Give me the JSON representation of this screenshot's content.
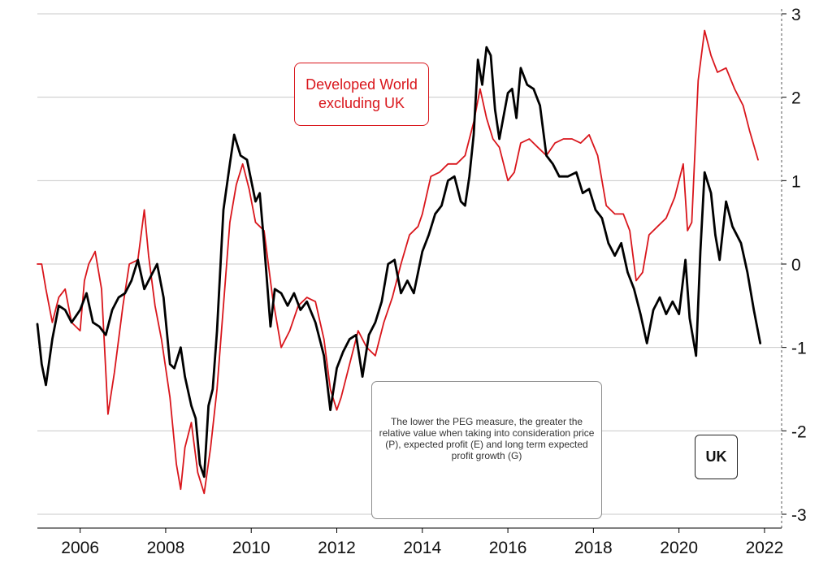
{
  "chart_data": {
    "type": "line",
    "title": "",
    "xlabel": "",
    "ylabel": "",
    "xlim": [
      2005.0,
      2022.4
    ],
    "ylim": [
      -3,
      3
    ],
    "y_axis_position": "right",
    "grid": "horizontal",
    "x_ticks": [
      "2006",
      "2008",
      "2010",
      "2012",
      "2014",
      "2016",
      "2018",
      "2020",
      "2022"
    ],
    "y_ticks": [
      "3",
      "2",
      "1",
      "0",
      "-1",
      "-2",
      "-3"
    ],
    "annotations": {
      "dev_world_line1": "Developed World",
      "dev_world_line2": "excluding UK",
      "uk": "UK",
      "note": "The lower the PEG measure, the greater the relative value when taking into consideration price (P), expected profit (E) and long term expected profit growth (G)"
    },
    "series": [
      {
        "name": "Developed World excluding UK",
        "color": "#d9161c",
        "x": [
          2005.0,
          2005.1,
          2005.2,
          2005.35,
          2005.5,
          2005.65,
          2005.8,
          2006.0,
          2006.1,
          2006.2,
          2006.35,
          2006.5,
          2006.65,
          2006.8,
          2007.0,
          2007.15,
          2007.35,
          2007.5,
          2007.6,
          2007.75,
          2007.9,
          2008.1,
          2008.25,
          2008.35,
          2008.45,
          2008.6,
          2008.75,
          2008.9,
          2009.05,
          2009.2,
          2009.35,
          2009.5,
          2009.65,
          2009.8,
          2009.95,
          2010.1,
          2010.3,
          2010.5,
          2010.7,
          2010.9,
          2011.1,
          2011.3,
          2011.5,
          2011.7,
          2011.85,
          2012.0,
          2012.1,
          2012.3,
          2012.5,
          2012.7,
          2012.9,
          2013.1,
          2013.3,
          2013.5,
          2013.7,
          2013.9,
          2014.0,
          2014.2,
          2014.4,
          2014.6,
          2014.8,
          2015.0,
          2015.2,
          2015.35,
          2015.5,
          2015.65,
          2015.8,
          2016.0,
          2016.15,
          2016.3,
          2016.5,
          2016.7,
          2016.9,
          2017.1,
          2017.3,
          2017.5,
          2017.7,
          2017.9,
          2018.1,
          2018.3,
          2018.5,
          2018.7,
          2018.85,
          2019.0,
          2019.15,
          2019.3,
          2019.5,
          2019.7,
          2019.9,
          2020.1,
          2020.2,
          2020.3,
          2020.45,
          2020.6,
          2020.75,
          2020.9,
          2021.1,
          2021.3,
          2021.5,
          2021.65,
          2021.85
        ],
        "values": [
          0.0,
          0.0,
          -0.3,
          -0.7,
          -0.4,
          -0.3,
          -0.7,
          -0.8,
          -0.2,
          0.0,
          0.15,
          -0.3,
          -1.8,
          -1.3,
          -0.5,
          0.0,
          0.05,
          0.65,
          0.1,
          -0.5,
          -0.9,
          -1.6,
          -2.4,
          -2.7,
          -2.2,
          -1.9,
          -2.5,
          -2.75,
          -2.2,
          -1.5,
          -0.5,
          0.5,
          0.95,
          1.2,
          0.9,
          0.5,
          0.4,
          -0.4,
          -1.0,
          -0.8,
          -0.5,
          -0.4,
          -0.45,
          -0.9,
          -1.5,
          -1.75,
          -1.6,
          -1.2,
          -0.8,
          -1.0,
          -1.1,
          -0.7,
          -0.4,
          0.0,
          0.35,
          0.45,
          0.6,
          1.05,
          1.1,
          1.2,
          1.2,
          1.3,
          1.7,
          2.1,
          1.75,
          1.5,
          1.4,
          1.0,
          1.1,
          1.45,
          1.5,
          1.4,
          1.3,
          1.45,
          1.5,
          1.5,
          1.45,
          1.55,
          1.3,
          0.7,
          0.6,
          0.6,
          0.4,
          -0.2,
          -0.1,
          0.35,
          0.45,
          0.55,
          0.8,
          1.2,
          0.4,
          0.5,
          2.2,
          2.8,
          2.5,
          2.3,
          2.35,
          2.1,
          1.9,
          1.6,
          1.25
        ]
      },
      {
        "name": "UK",
        "color": "#000000",
        "x": [
          2005.0,
          2005.1,
          2005.2,
          2005.35,
          2005.5,
          2005.65,
          2005.8,
          2006.0,
          2006.15,
          2006.3,
          2006.45,
          2006.6,
          2006.75,
          2006.9,
          2007.05,
          2007.2,
          2007.35,
          2007.5,
          2007.65,
          2007.8,
          2007.95,
          2008.1,
          2008.2,
          2008.35,
          2008.45,
          2008.6,
          2008.7,
          2008.8,
          2008.9,
          2009.0,
          2009.1,
          2009.2,
          2009.35,
          2009.5,
          2009.6,
          2009.75,
          2009.9,
          2010.0,
          2010.1,
          2010.2,
          2010.3,
          2010.45,
          2010.55,
          2010.7,
          2010.85,
          2011.0,
          2011.15,
          2011.3,
          2011.5,
          2011.7,
          2011.85,
          2012.0,
          2012.15,
          2012.3,
          2012.45,
          2012.6,
          2012.75,
          2012.9,
          2013.05,
          2013.2,
          2013.35,
          2013.5,
          2013.65,
          2013.8,
          2014.0,
          2014.15,
          2014.3,
          2014.45,
          2014.6,
          2014.75,
          2014.9,
          2015.0,
          2015.1,
          2015.2,
          2015.3,
          2015.4,
          2015.5,
          2015.6,
          2015.7,
          2015.8,
          2016.0,
          2016.1,
          2016.2,
          2016.3,
          2016.45,
          2016.6,
          2016.75,
          2016.9,
          2017.05,
          2017.2,
          2017.4,
          2017.6,
          2017.75,
          2017.9,
          2018.05,
          2018.2,
          2018.35,
          2018.5,
          2018.65,
          2018.8,
          2018.95,
          2019.1,
          2019.25,
          2019.4,
          2019.55,
          2019.7,
          2019.85,
          2020.0,
          2020.15,
          2020.25,
          2020.4,
          2020.5,
          2020.6,
          2020.75,
          2020.85,
          2020.95,
          2021.1,
          2021.25,
          2021.45,
          2021.6,
          2021.75,
          2021.9
        ],
        "values": [
          -0.72,
          -1.2,
          -1.45,
          -0.9,
          -0.5,
          -0.55,
          -0.7,
          -0.55,
          -0.35,
          -0.7,
          -0.75,
          -0.85,
          -0.55,
          -0.4,
          -0.35,
          -0.2,
          0.05,
          -0.3,
          -0.15,
          0.0,
          -0.4,
          -1.2,
          -1.25,
          -1.0,
          -1.35,
          -1.7,
          -1.85,
          -2.4,
          -2.55,
          -1.7,
          -1.5,
          -0.8,
          0.65,
          1.2,
          1.55,
          1.3,
          1.25,
          1.0,
          0.75,
          0.85,
          0.25,
          -0.75,
          -0.3,
          -0.35,
          -0.5,
          -0.35,
          -0.55,
          -0.45,
          -0.7,
          -1.1,
          -1.75,
          -1.25,
          -1.05,
          -0.9,
          -0.85,
          -1.35,
          -0.85,
          -0.7,
          -0.45,
          0.0,
          0.05,
          -0.35,
          -0.2,
          -0.35,
          0.15,
          0.35,
          0.6,
          0.7,
          1.0,
          1.05,
          0.75,
          0.7,
          1.05,
          1.55,
          2.45,
          2.15,
          2.6,
          2.5,
          1.85,
          1.5,
          2.05,
          2.1,
          1.75,
          2.35,
          2.15,
          2.1,
          1.9,
          1.3,
          1.2,
          1.05,
          1.05,
          1.1,
          0.85,
          0.9,
          0.65,
          0.55,
          0.25,
          0.1,
          0.25,
          -0.1,
          -0.3,
          -0.6,
          -0.95,
          -0.55,
          -0.4,
          -0.6,
          -0.45,
          -0.6,
          0.05,
          -0.65,
          -1.1,
          0.15,
          1.1,
          0.85,
          0.35,
          0.05,
          0.75,
          0.45,
          0.25,
          -0.1,
          -0.55,
          -0.95
        ]
      }
    ]
  }
}
